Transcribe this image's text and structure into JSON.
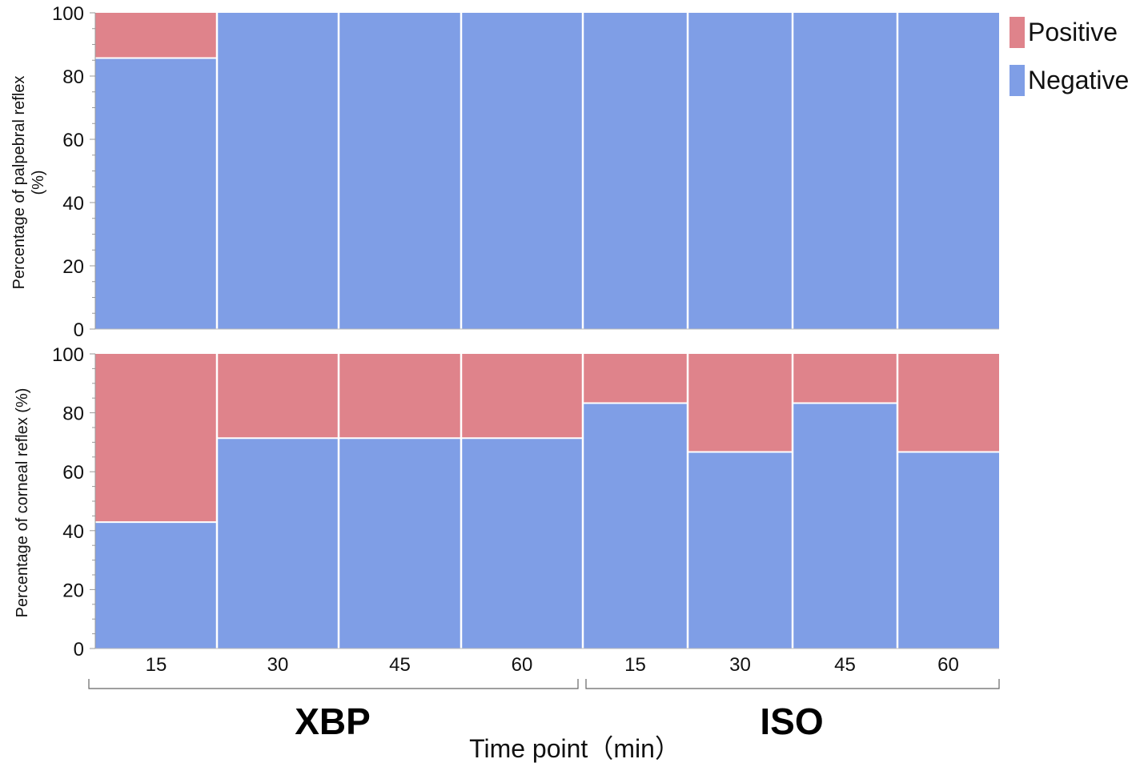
{
  "colors": {
    "positive": "#df838b",
    "negative": "#7f9ee6"
  },
  "legend": [
    {
      "key": "positive",
      "label": "Positive"
    },
    {
      "key": "negative",
      "label": "Negative"
    }
  ],
  "xlabel": "Time point（min）",
  "chart_data": [
    {
      "type": "bar",
      "stacked": true,
      "panel": "top",
      "ylabel": [
        "Percentage of palpebral reflex",
        "(%)"
      ],
      "ylim": [
        0,
        100
      ],
      "yticks": [
        0,
        20,
        40,
        60,
        80,
        100
      ],
      "groups": [
        "XBP",
        "XBP",
        "XBP",
        "XBP",
        "ISO",
        "ISO",
        "ISO",
        "ISO"
      ],
      "categories": [
        "15",
        "30",
        "45",
        "60",
        "15",
        "30",
        "45",
        "60"
      ],
      "series": [
        {
          "name": "Negative",
          "values": [
            85.7,
            100,
            100,
            100,
            100,
            100,
            100,
            100
          ]
        },
        {
          "name": "Positive",
          "values": [
            14.3,
            0,
            0,
            0,
            0,
            0,
            0,
            0
          ]
        }
      ]
    },
    {
      "type": "bar",
      "stacked": true,
      "panel": "bottom",
      "ylabel": [
        "Percentage of corneal reflex (%)"
      ],
      "ylim": [
        0,
        100
      ],
      "yticks": [
        0,
        20,
        40,
        60,
        80,
        100
      ],
      "groups": [
        "XBP",
        "XBP",
        "XBP",
        "XBP",
        "ISO",
        "ISO",
        "ISO",
        "ISO"
      ],
      "categories": [
        "15",
        "30",
        "45",
        "60",
        "15",
        "30",
        "45",
        "60"
      ],
      "series": [
        {
          "name": "Negative",
          "values": [
            42.9,
            71.4,
            71.4,
            71.4,
            83.3,
            66.7,
            83.3,
            66.7
          ]
        },
        {
          "name": "Positive",
          "values": [
            57.1,
            28.6,
            28.6,
            28.6,
            16.7,
            33.3,
            16.7,
            33.3
          ]
        }
      ]
    }
  ]
}
